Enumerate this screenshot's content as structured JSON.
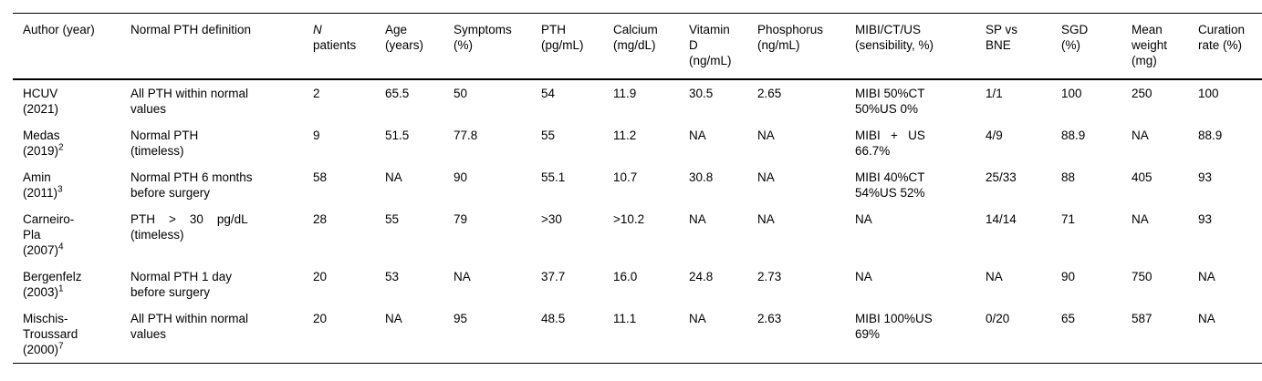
{
  "table": {
    "headers": [
      "Author (year)",
      "Normal PTH definition",
      {
        "italic": "N",
        "rest": "patients"
      },
      "Age\n(years)",
      "Symptoms\n(%)",
      "PTH\n(pg/mL)",
      "Calcium\n(mg/dL)",
      "Vitamin\nD\n(ng/mL)",
      "Phosphorus\n(ng/mL)",
      "MIBI/CT/US\n(sensibility, %)",
      "SP vs\nBNE",
      "SGD\n(%)",
      "Mean\nweight\n(mg)",
      "Curation\nrate (%)"
    ],
    "rows": [
      {
        "author": "HCUV\n(2021)",
        "definition": "All PTH within normal\nvalues",
        "n_patients": "2",
        "age": "65.5",
        "symptoms": "50",
        "pth": "54",
        "calcium": "11.9",
        "vitamin_d": "30.5",
        "phosphorus": "2.65",
        "mibi": "MIBI 50%CT\n50%US 0%",
        "sp_vs_bne": "1/1",
        "sgd": "100",
        "mean_weight": "250",
        "curation_rate": "100"
      },
      {
        "author": "Medas\n(2019)",
        "author_sup": "2",
        "definition": "Normal PTH\n(timeless)",
        "n_patients": "9",
        "age": "51.5",
        "symptoms": "77.8",
        "pth": "55",
        "calcium": "11.2",
        "vitamin_d": "NA",
        "phosphorus": "NA",
        "mibi": "MIBI   +   US\n66.7%",
        "sp_vs_bne": "4/9",
        "sgd": "88.9",
        "mean_weight": "NA",
        "curation_rate": "88.9"
      },
      {
        "author": "Amin\n(2011)",
        "author_sup": "3",
        "definition": "Normal PTH 6 months\nbefore surgery",
        "n_patients": "58",
        "age": "NA",
        "symptoms": "90",
        "pth": "55.1",
        "calcium": "10.7",
        "vitamin_d": "30.8",
        "phosphorus": "NA",
        "mibi": "MIBI 40%CT\n54%US 52%",
        "sp_vs_bne": "25/33",
        "sgd": "88",
        "mean_weight": "405",
        "curation_rate": "93"
      },
      {
        "author": "Carneiro-\nPla\n(2007)",
        "author_sup": "4",
        "definition": "PTH    >    30    pg/dL\n(timeless)",
        "n_patients": "28",
        "age": "55",
        "symptoms": "79",
        "pth": ">30",
        "calcium": ">10.2",
        "vitamin_d": "NA",
        "phosphorus": "NA",
        "mibi": "NA",
        "sp_vs_bne": "14/14",
        "sgd": "71",
        "mean_weight": "NA",
        "curation_rate": "93"
      },
      {
        "author": "Bergenfelz\n(2003)",
        "author_sup": "1",
        "definition": "Normal PTH 1 day\nbefore surgery",
        "n_patients": "20",
        "age": "53",
        "symptoms": "NA",
        "pth": "37.7",
        "calcium": "16.0",
        "vitamin_d": "24.8",
        "phosphorus": "2.73",
        "mibi": "NA",
        "sp_vs_bne": "NA",
        "sgd": "90",
        "mean_weight": "750",
        "curation_rate": "NA"
      },
      {
        "author": "Mischis-\nTroussard\n(2000)",
        "author_sup": "7",
        "definition": "All PTH within normal\nvalues",
        "n_patients": "20",
        "age": "NA",
        "symptoms": "95",
        "pth": "48.5",
        "calcium": "11.1",
        "vitamin_d": "NA",
        "phosphorus": "2.63",
        "mibi": "MIBI 100%US\n69%",
        "sp_vs_bne": "0/20",
        "sgd": "65",
        "mean_weight": "587",
        "curation_rate": "NA"
      }
    ]
  }
}
